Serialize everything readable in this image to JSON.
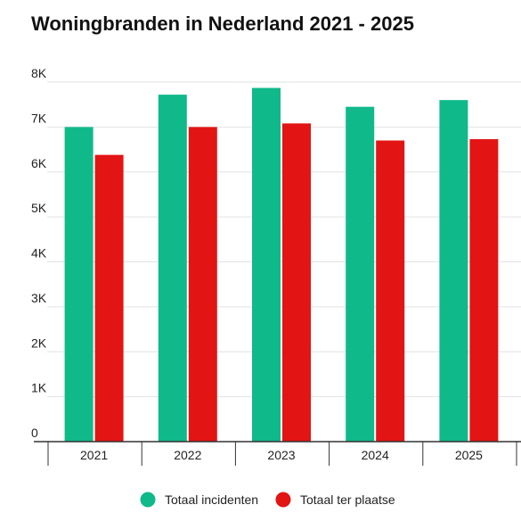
{
  "chart_data": {
    "type": "bar",
    "title": "Woningbranden in Nederland 2021 - 2025",
    "xlabel": "",
    "ylabel": "",
    "categories": [
      "2021",
      "2022",
      "2023",
      "2024",
      "2025"
    ],
    "series": [
      {
        "name": "Totaal incidenten",
        "color": "#10b98a",
        "values": [
          7000,
          7720,
          7870,
          7450,
          7600
        ]
      },
      {
        "name": "Totaal ter plaatse",
        "color": "#e31414",
        "values": [
          6380,
          7000,
          7080,
          6700,
          6730
        ]
      }
    ],
    "ylim": [
      0,
      8000
    ],
    "yticks": [
      {
        "value": 0,
        "label": "0"
      },
      {
        "value": 1000,
        "label": "1K"
      },
      {
        "value": 2000,
        "label": "2K"
      },
      {
        "value": 3000,
        "label": "3K"
      },
      {
        "value": 4000,
        "label": "4K"
      },
      {
        "value": 5000,
        "label": "5K"
      },
      {
        "value": 6000,
        "label": "6K"
      },
      {
        "value": 7000,
        "label": "7K"
      },
      {
        "value": 8000,
        "label": "8K"
      }
    ],
    "grid": true,
    "legend_position": "bottom"
  }
}
